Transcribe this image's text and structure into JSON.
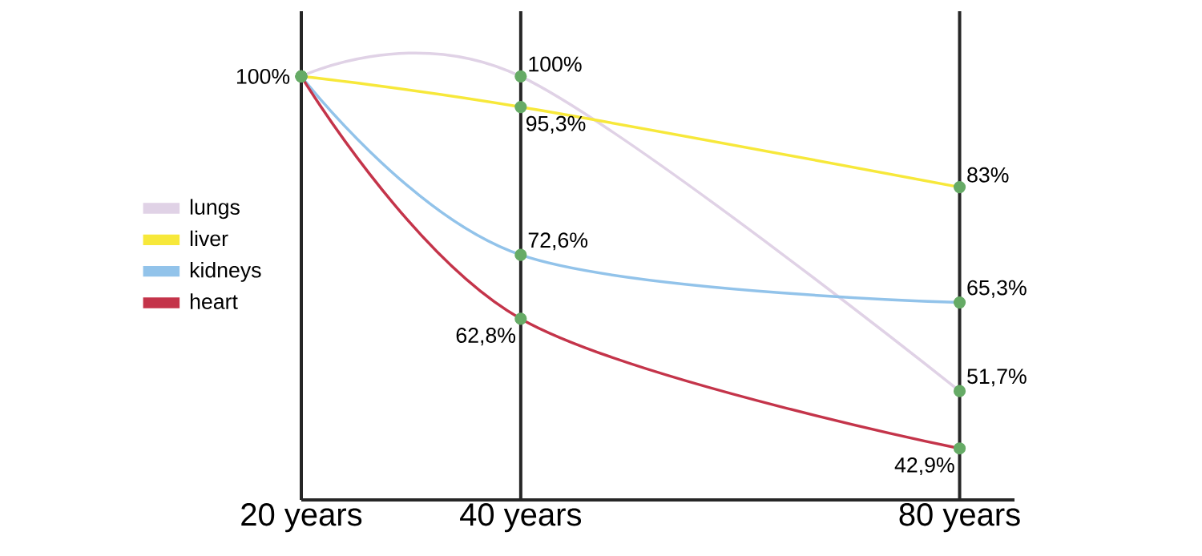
{
  "chart_data": {
    "type": "line",
    "x": [
      20,
      40,
      80
    ],
    "xlim": [
      20,
      85
    ],
    "ylim": [
      35,
      110
    ],
    "xticks": [
      {
        "value": 20,
        "label": "20 years"
      },
      {
        "value": 40,
        "label": "40 years"
      },
      {
        "value": 80,
        "label": "80 years"
      }
    ],
    "tick_labels": "x",
    "grid": "x",
    "legend": "left",
    "marker": "circle",
    "series": [
      {
        "name": "lungs",
        "color": "#e0d2e6",
        "values": [
          100,
          100,
          51.7
        ],
        "value_labels": [
          "100%",
          "100%",
          "51,7%"
        ]
      },
      {
        "name": "liver",
        "color": "#f7e83a",
        "values": [
          100,
          95.3,
          83
        ],
        "value_labels": [
          null,
          "95,3%",
          "83%"
        ]
      },
      {
        "name": "kidneys",
        "color": "#92c3ea",
        "values": [
          100,
          72.6,
          65.3
        ],
        "value_labels": [
          null,
          "72,6%",
          "65,3%"
        ]
      },
      {
        "name": "heart",
        "color": "#c4344a",
        "values": [
          100,
          62.8,
          42.9
        ],
        "value_labels": [
          null,
          "62,8%",
          "42,9%"
        ]
      }
    ]
  }
}
